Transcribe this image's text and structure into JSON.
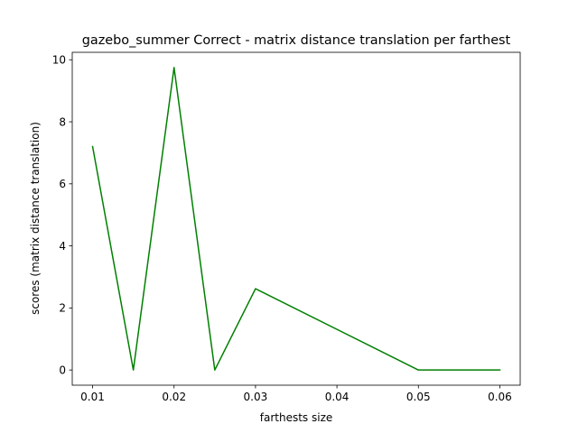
{
  "chart_data": {
    "type": "line",
    "title": "gazebo_summer Correct - matrix distance translation per farthest",
    "xlabel": "farthests size",
    "ylabel": "scores (matrix distance translation)",
    "x": [
      0.01,
      0.015,
      0.02,
      0.025,
      0.03,
      0.05,
      0.06
    ],
    "series": [
      {
        "values": [
          7.2,
          0.0,
          9.75,
          0.0,
          2.62,
          0.0,
          0.0
        ],
        "color": "#008000"
      }
    ],
    "xlim": [
      0.0075,
      0.0625
    ],
    "ylim": [
      -0.49,
      10.24
    ],
    "xticks": [
      0.01,
      0.02,
      0.03,
      0.04,
      0.05,
      0.06
    ],
    "xtick_labels": [
      "0.01",
      "0.02",
      "0.03",
      "0.04",
      "0.05",
      "0.06"
    ],
    "yticks": [
      0,
      2,
      4,
      6,
      8,
      10
    ],
    "ytick_labels": [
      "0",
      "2",
      "4",
      "6",
      "8",
      "10"
    ],
    "grid": false
  }
}
